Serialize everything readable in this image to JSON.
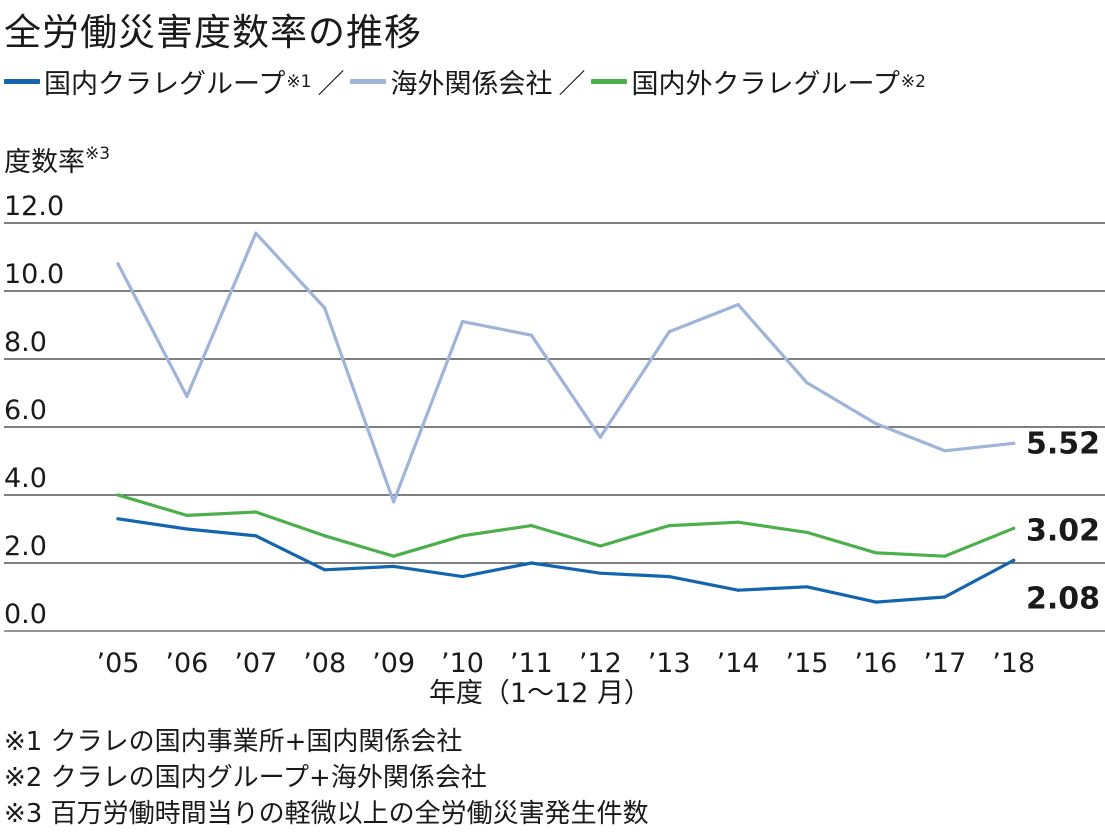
{
  "title": "全労働災害度数率の推移",
  "legend": {
    "separator": "／",
    "items": [
      {
        "label": "国内クラレグループ",
        "note": "※1",
        "color": "#1565ae"
      },
      {
        "label": "海外関係会社",
        "note": "",
        "color": "#9fb4d9"
      },
      {
        "label": "国内外クラレグループ",
        "note": "※2",
        "color": "#4caf4c"
      }
    ]
  },
  "ylabel": {
    "text": "度数率",
    "note": "※3"
  },
  "notes": [
    "※1 クラレの国内事業所+国内関係会社",
    "※2 クラレの国内グループ+海外関係会社",
    "※3 百万労働時間当りの軽微以上の全労働災害発生件数"
  ],
  "chart_data": {
    "type": "line",
    "title": "全労働災害度数率の推移",
    "xlabel": "年度（1〜12 月）",
    "ylabel": "度数率※3",
    "categories": [
      "’05",
      "’06",
      "’07",
      "’08",
      "’09",
      "’10",
      "’11",
      "’12",
      "’13",
      "’14",
      "’15",
      "’16",
      "’17",
      "’18"
    ],
    "y_ticks": [
      "0.0",
      "2.0",
      "4.0",
      "6.0",
      "8.0",
      "10.0",
      "12.0"
    ],
    "ylim": [
      0,
      12
    ],
    "grid": true,
    "legend_position": "top",
    "series": [
      {
        "name": "海外関係会社",
        "color": "#9fb4d9",
        "values": [
          10.8,
          6.9,
          11.7,
          9.5,
          3.8,
          9.1,
          8.7,
          5.7,
          8.8,
          9.6,
          7.3,
          6.1,
          5.3,
          5.52
        ],
        "end_label": "5.52"
      },
      {
        "name": "国内外クラレグループ",
        "color": "#4caf4c",
        "values": [
          4.0,
          3.4,
          3.5,
          2.8,
          2.2,
          2.8,
          3.1,
          2.5,
          3.1,
          3.2,
          2.9,
          2.3,
          2.2,
          3.02
        ],
        "end_label": "3.02"
      },
      {
        "name": "国内クラレグループ",
        "color": "#1565ae",
        "values": [
          3.3,
          3.0,
          2.8,
          1.8,
          1.9,
          1.6,
          2.0,
          1.7,
          1.6,
          1.2,
          1.3,
          0.85,
          1.0,
          2.08
        ],
        "end_label": "2.08"
      }
    ]
  }
}
